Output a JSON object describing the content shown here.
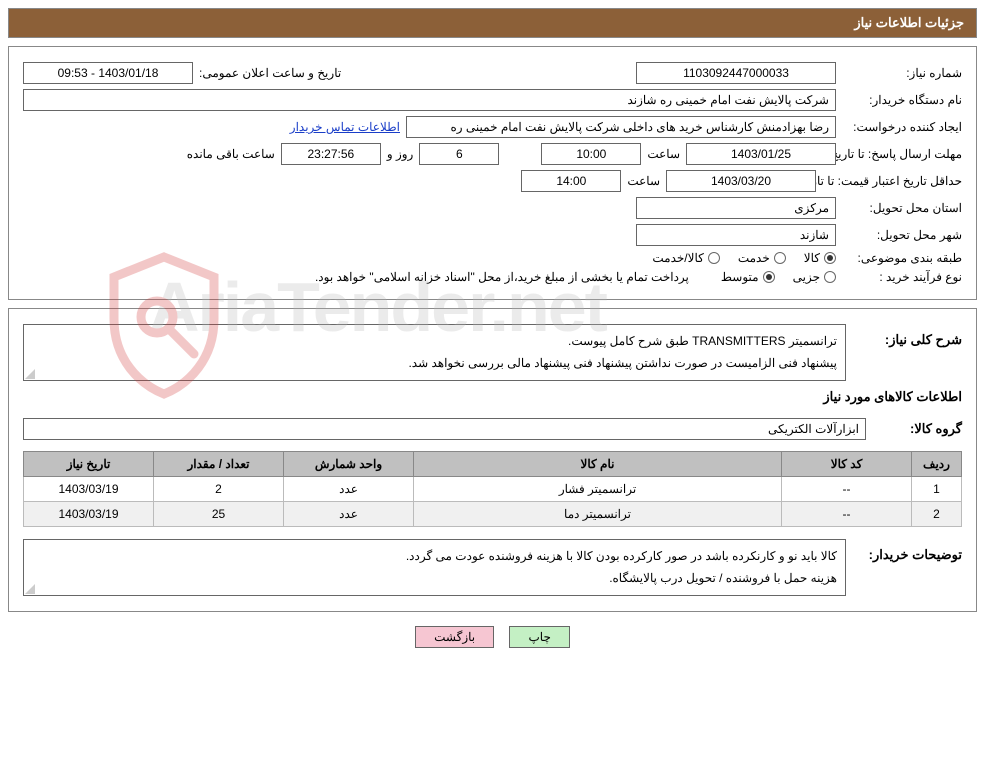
{
  "header": {
    "title": "جزئیات اطلاعات نیاز"
  },
  "colors": {
    "header_bg": "#8c6038",
    "header_fg": "#ffffff",
    "border": "#888888",
    "table_header_bg": "#c0c0c0",
    "alt_row_bg": "#f0f0f0",
    "btn_print_bg": "#c4f0c4",
    "btn_back_bg": "#f6c6d2",
    "link": "#1a3ec8",
    "watermark": "#b8b8b8",
    "shield_stroke": "#d43a3a"
  },
  "watermark": {
    "text": "AriaTender.net"
  },
  "fields": {
    "need_number": {
      "label": "شماره نیاز:",
      "value": "1103092447000033"
    },
    "announce_dt": {
      "label": "تاریخ و ساعت اعلان عمومی:",
      "value": "1403/01/18 - 09:53"
    },
    "buyer_org": {
      "label": "نام دستگاه خریدار:",
      "value": "شرکت پالایش نفت امام خمینی  ره  شازند"
    },
    "requester": {
      "label": "ایجاد کننده درخواست:",
      "value": "رضا بهزادمنش کارشناس خرید های داخلی  شرکت پالایش نفت امام خمینی  ره"
    },
    "buyer_contact_link": "اطلاعات تماس خریدار",
    "deadline": {
      "label": "مهلت ارسال پاسخ:",
      "sub_label": "تا تاریخ:",
      "date": "1403/01/25",
      "time_label": "ساعت",
      "time": "10:00",
      "days_label": "روز و",
      "days": "6",
      "remain_time": "23:27:56",
      "remain_label": "ساعت باقی مانده"
    },
    "price_validity": {
      "label": "حداقل تاریخ اعتبار قیمت:",
      "sub_label": "تا تاریخ:",
      "date": "1403/03/20",
      "time_label": "ساعت",
      "time": "14:00"
    },
    "province": {
      "label": "استان محل تحویل:",
      "value": "مرکزی"
    },
    "city": {
      "label": "شهر محل تحویل:",
      "value": "شازند"
    },
    "category": {
      "label": "طبقه بندی موضوعی:",
      "options": [
        "کالا",
        "خدمت",
        "کالا/خدمت"
      ],
      "selected_index": 0
    },
    "purchase_type": {
      "label": "نوع فرآیند خرید :",
      "options": [
        "جزیی",
        "متوسط"
      ],
      "selected_index": 1,
      "note": "پرداخت تمام یا بخشی از مبلغ خرید،از محل \"اسناد خزانه اسلامی\" خواهد بود."
    }
  },
  "description": {
    "label": "شرح کلی نیاز:",
    "text_line1": "ترانسمیتر TRANSMITTERS طبق شرح کامل پیوست.",
    "text_line2": "پیشنهاد فنی الزامیست در صورت نداشتن پیشنهاد فنی پیشنهاد مالی بررسی نخواهد شد."
  },
  "items_section": {
    "title": "اطلاعات کالاهای مورد نیاز",
    "group_label": "گروه کالا:",
    "group_value": "ابزارآلات الکتریکی",
    "columns": [
      "ردیف",
      "کد کالا",
      "نام کالا",
      "واحد شمارش",
      "تعداد / مقدار",
      "تاریخ نیاز"
    ],
    "col_widths": [
      "50px",
      "130px",
      "auto",
      "130px",
      "130px",
      "130px"
    ],
    "rows": [
      {
        "idx": "1",
        "code": "--",
        "name": "ترانسمیتر فشار",
        "unit": "عدد",
        "qty": "2",
        "date": "1403/03/19"
      },
      {
        "idx": "2",
        "code": "--",
        "name": "ترانسمیتر دما",
        "unit": "عدد",
        "qty": "25",
        "date": "1403/03/19"
      }
    ]
  },
  "buyer_notes": {
    "label": "توضیحات خریدار:",
    "line1": "کالا باید نو و کارنکرده باشد در صور کارکرده بودن کالا با هزینه فروشنده عودت می گردد.",
    "line2": "هزینه حمل با فروشنده / تحویل درب پالایشگاه."
  },
  "buttons": {
    "print": "چاپ",
    "back": "بازگشت"
  }
}
